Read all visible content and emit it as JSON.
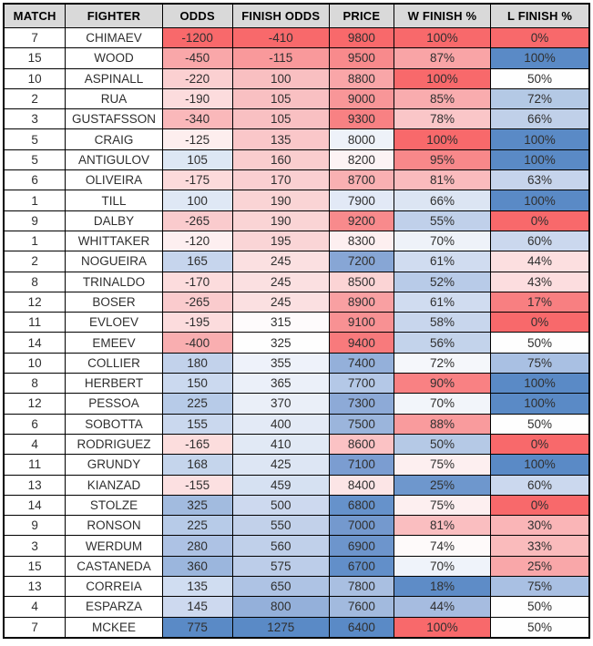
{
  "colors": {
    "header_bg": "#d9d9d9",
    "border": "#000000",
    "scale_red": "#f8696b",
    "scale_white": "#fcfcff",
    "scale_blue": "#5a8ac6",
    "plain_bg": "#ffffff"
  },
  "table": {
    "columns": [
      {
        "key": "match",
        "label": "MATCH"
      },
      {
        "key": "fighter",
        "label": "FIGHTER"
      },
      {
        "key": "odds",
        "label": "ODDS"
      },
      {
        "key": "finish_odds",
        "label": "FINISH ODDS"
      },
      {
        "key": "price",
        "label": "PRICE"
      },
      {
        "key": "w_finish",
        "label": "W FINISH %"
      },
      {
        "key": "l_finish",
        "label": "L FINISH %"
      }
    ],
    "rows": [
      {
        "match": "7",
        "fighter": "CHIMAEV",
        "odds": {
          "t": "-1200",
          "bg": "#f8696b"
        },
        "finish_odds": {
          "t": "-410",
          "bg": "#f8696b"
        },
        "price": {
          "t": "9800",
          "bg": "#f8696b"
        },
        "w_finish": {
          "t": "100%",
          "bg": "#f8696b"
        },
        "l_finish": {
          "t": "0%",
          "bg": "#f8696b"
        }
      },
      {
        "match": "15",
        "fighter": "WOOD",
        "odds": {
          "t": "-450",
          "bg": "#f9a7a9"
        },
        "finish_odds": {
          "t": "-115",
          "bg": "#f9999b"
        },
        "price": {
          "t": "9500",
          "bg": "#f88a8c"
        },
        "w_finish": {
          "t": "87%",
          "bg": "#f9a4a6"
        },
        "l_finish": {
          "t": "100%",
          "bg": "#5a8ac6"
        }
      },
      {
        "match": "10",
        "fighter": "ASPINALL",
        "odds": {
          "t": "-220",
          "bg": "#fbd0d1"
        },
        "finish_odds": {
          "t": "100",
          "bg": "#f9bfc1"
        },
        "price": {
          "t": "8800",
          "bg": "#f9a6a8"
        },
        "w_finish": {
          "t": "100%",
          "bg": "#f8696b"
        },
        "l_finish": {
          "t": "50%",
          "bg": "#fefefe"
        }
      },
      {
        "match": "2",
        "fighter": "RUA",
        "odds": {
          "t": "-190",
          "bg": "#fcdcdd"
        },
        "finish_odds": {
          "t": "105",
          "bg": "#f9c0c2"
        },
        "price": {
          "t": "9000",
          "bg": "#f89698"
        },
        "w_finish": {
          "t": "85%",
          "bg": "#f9acae"
        },
        "l_finish": {
          "t": "72%",
          "bg": "#b4c9e5"
        }
      },
      {
        "match": "3",
        "fighter": "GUSTAFSSON",
        "odds": {
          "t": "-340",
          "bg": "#fab8ba"
        },
        "finish_odds": {
          "t": "105",
          "bg": "#f9c0c2"
        },
        "price": {
          "t": "9300",
          "bg": "#f88183"
        },
        "w_finish": {
          "t": "78%",
          "bg": "#fac6c8"
        },
        "l_finish": {
          "t": "66%",
          "bg": "#c0d0e9"
        }
      },
      {
        "match": "5",
        "fighter": "CRAIG",
        "odds": {
          "t": "-125",
          "bg": "#fdeeee"
        },
        "finish_odds": {
          "t": "135",
          "bg": "#fac7c9"
        },
        "price": {
          "t": "8000",
          "bg": "#eef2f9"
        },
        "w_finish": {
          "t": "100%",
          "bg": "#f8696b"
        },
        "l_finish": {
          "t": "100%",
          "bg": "#5a8ac6"
        }
      },
      {
        "match": "5",
        "fighter": "ANTIGULOV",
        "odds": {
          "t": "105",
          "bg": "#dde7f4"
        },
        "finish_odds": {
          "t": "160",
          "bg": "#facdce"
        },
        "price": {
          "t": "8200",
          "bg": "#fcf3f4"
        },
        "w_finish": {
          "t": "95%",
          "bg": "#f8888a"
        },
        "l_finish": {
          "t": "100%",
          "bg": "#5a8ac6"
        }
      },
      {
        "match": "6",
        "fighter": "OLIVEIRA",
        "odds": {
          "t": "-175",
          "bg": "#fcdadb"
        },
        "finish_odds": {
          "t": "170",
          "bg": "#facfd1"
        },
        "price": {
          "t": "8700",
          "bg": "#f9b0b2"
        },
        "w_finish": {
          "t": "81%",
          "bg": "#fabbbd"
        },
        "l_finish": {
          "t": "63%",
          "bg": "#c6d4ec"
        }
      },
      {
        "match": "1",
        "fighter": "TILL",
        "odds": {
          "t": "100",
          "bg": "#dfe8f5"
        },
        "finish_odds": {
          "t": "190",
          "bg": "#fad4d5"
        },
        "price": {
          "t": "7900",
          "bg": "#e2e9f6"
        },
        "w_finish": {
          "t": "66%",
          "bg": "#dce5f3"
        },
        "l_finish": {
          "t": "100%",
          "bg": "#5a8ac6"
        }
      },
      {
        "match": "9",
        "fighter": "DALBY",
        "odds": {
          "t": "-265",
          "bg": "#facbcd"
        },
        "finish_odds": {
          "t": "190",
          "bg": "#fad4d5"
        },
        "price": {
          "t": "9200",
          "bg": "#f88a8c"
        },
        "w_finish": {
          "t": "55%",
          "bg": "#c0d0ea"
        },
        "l_finish": {
          "t": "0%",
          "bg": "#f8696b"
        }
      },
      {
        "match": "1",
        "fighter": "WHITTAKER",
        "odds": {
          "t": "-120",
          "bg": "#fdeff0"
        },
        "finish_odds": {
          "t": "195",
          "bg": "#fad5d6"
        },
        "price": {
          "t": "8300",
          "bg": "#fdeff0"
        },
        "w_finish": {
          "t": "70%",
          "bg": "#eef2f9"
        },
        "l_finish": {
          "t": "60%",
          "bg": "#cbd8ee"
        }
      },
      {
        "match": "2",
        "fighter": "NOGUEIRA",
        "odds": {
          "t": "165",
          "bg": "#c6d5ed"
        },
        "finish_odds": {
          "t": "245",
          "bg": "#fbe0e1"
        },
        "price": {
          "t": "7200",
          "bg": "#87a6d5"
        },
        "w_finish": {
          "t": "61%",
          "bg": "#d0dcf0"
        },
        "l_finish": {
          "t": "44%",
          "bg": "#fcdfe0"
        }
      },
      {
        "match": "8",
        "fighter": "TRINALDO",
        "odds": {
          "t": "-170",
          "bg": "#fcdcdd"
        },
        "finish_odds": {
          "t": "245",
          "bg": "#fbe0e1"
        },
        "price": {
          "t": "8500",
          "bg": "#fbd4d5"
        },
        "w_finish": {
          "t": "52%",
          "bg": "#b8cbe8"
        },
        "l_finish": {
          "t": "43%",
          "bg": "#fcdddf"
        }
      },
      {
        "match": "12",
        "fighter": "BOSER",
        "odds": {
          "t": "-265",
          "bg": "#facbcd"
        },
        "finish_odds": {
          "t": "245",
          "bg": "#fbe0e1"
        },
        "price": {
          "t": "8900",
          "bg": "#f9a0a2"
        },
        "w_finish": {
          "t": "61%",
          "bg": "#d0dcf0"
        },
        "l_finish": {
          "t": "17%",
          "bg": "#f87f81"
        }
      },
      {
        "match": "11",
        "fighter": "EVLOEV",
        "odds": {
          "t": "-195",
          "bg": "#fcdcdd"
        },
        "finish_odds": {
          "t": "315",
          "bg": "#fefbfc"
        },
        "price": {
          "t": "9100",
          "bg": "#f89193"
        },
        "w_finish": {
          "t": "58%",
          "bg": "#c8d6ed"
        },
        "l_finish": {
          "t": "0%",
          "bg": "#f8696b"
        }
      },
      {
        "match": "14",
        "fighter": "EMEEV",
        "odds": {
          "t": "-400",
          "bg": "#f9aeb0"
        },
        "finish_odds": {
          "t": "325",
          "bg": "#fefefe"
        },
        "price": {
          "t": "9400",
          "bg": "#f87a7c"
        },
        "w_finish": {
          "t": "56%",
          "bg": "#c3d3eb"
        },
        "l_finish": {
          "t": "50%",
          "bg": "#fefefe"
        }
      },
      {
        "match": "10",
        "fighter": "COLLIER",
        "odds": {
          "t": "180",
          "bg": "#c2d2eb"
        },
        "finish_odds": {
          "t": "355",
          "bg": "#eef2fa"
        },
        "price": {
          "t": "7400",
          "bg": "#94b0da"
        },
        "w_finish": {
          "t": "72%",
          "bg": "#f5f7fb"
        },
        "l_finish": {
          "t": "75%",
          "bg": "#a9c0e3"
        }
      },
      {
        "match": "8",
        "fighter": "HERBERT",
        "odds": {
          "t": "150",
          "bg": "#cbd9ef"
        },
        "finish_odds": {
          "t": "365",
          "bg": "#ebf0f9"
        },
        "price": {
          "t": "7700",
          "bg": "#b4c8e7"
        },
        "w_finish": {
          "t": "90%",
          "bg": "#f98183"
        },
        "l_finish": {
          "t": "100%",
          "bg": "#5a8ac6"
        }
      },
      {
        "match": "12",
        "fighter": "PESSOA",
        "odds": {
          "t": "225",
          "bg": "#b7cbe8"
        },
        "finish_odds": {
          "t": "370",
          "bg": "#eaeff8"
        },
        "price": {
          "t": "7300",
          "bg": "#8daad7"
        },
        "w_finish": {
          "t": "70%",
          "bg": "#f2f5fa"
        },
        "l_finish": {
          "t": "100%",
          "bg": "#5a8ac6"
        }
      },
      {
        "match": "6",
        "fighter": "SOBOTTA",
        "odds": {
          "t": "155",
          "bg": "#cad8ee"
        },
        "finish_odds": {
          "t": "400",
          "bg": "#e3eaf6"
        },
        "price": {
          "t": "7500",
          "bg": "#9bb5dc"
        },
        "w_finish": {
          "t": "88%",
          "bg": "#f99b9d"
        },
        "l_finish": {
          "t": "50%",
          "bg": "#fefefe"
        }
      },
      {
        "match": "4",
        "fighter": "RODRIGUEZ",
        "odds": {
          "t": "-165",
          "bg": "#fcdddd"
        },
        "finish_odds": {
          "t": "410",
          "bg": "#e1e9f5"
        },
        "price": {
          "t": "8600",
          "bg": "#fbc2c4"
        },
        "w_finish": {
          "t": "50%",
          "bg": "#b5c9e6"
        },
        "l_finish": {
          "t": "0%",
          "bg": "#f8696b"
        }
      },
      {
        "match": "11",
        "fighter": "GRUNDY",
        "odds": {
          "t": "168",
          "bg": "#c5d5ec"
        },
        "finish_odds": {
          "t": "425",
          "bg": "#dde6f4"
        },
        "price": {
          "t": "7100",
          "bg": "#7b9dd1"
        },
        "w_finish": {
          "t": "75%",
          "bg": "#fdeff0"
        },
        "l_finish": {
          "t": "100%",
          "bg": "#5a8ac6"
        }
      },
      {
        "match": "13",
        "fighter": "KIANZAD",
        "odds": {
          "t": "-155",
          "bg": "#fce0e1"
        },
        "finish_odds": {
          "t": "459",
          "bg": "#d6e1f2"
        },
        "price": {
          "t": "8400",
          "bg": "#fce5e6"
        },
        "w_finish": {
          "t": "25%",
          "bg": "#6e97cd"
        },
        "l_finish": {
          "t": "60%",
          "bg": "#cbd8ee"
        }
      },
      {
        "match": "14",
        "fighter": "STOLZE",
        "odds": {
          "t": "325",
          "bg": "#a2bbdf"
        },
        "finish_odds": {
          "t": "500",
          "bg": "#cdd9ef"
        },
        "price": {
          "t": "6800",
          "bg": "#6692cb"
        },
        "w_finish": {
          "t": "75%",
          "bg": "#fdeff0"
        },
        "l_finish": {
          "t": "0%",
          "bg": "#f8696b"
        }
      },
      {
        "match": "9",
        "fighter": "RONSON",
        "odds": {
          "t": "225",
          "bg": "#b7cbe8"
        },
        "finish_odds": {
          "t": "550",
          "bg": "#c2d1ea"
        },
        "price": {
          "t": "7000",
          "bg": "#7499ce"
        },
        "w_finish": {
          "t": "81%",
          "bg": "#fabec0"
        },
        "l_finish": {
          "t": "30%",
          "bg": "#fab5b7"
        }
      },
      {
        "match": "3",
        "fighter": "WERDUM",
        "odds": {
          "t": "280",
          "bg": "#adc2e4"
        },
        "finish_odds": {
          "t": "560",
          "bg": "#c0d0ea"
        },
        "price": {
          "t": "6900",
          "bg": "#6d95cc"
        },
        "w_finish": {
          "t": "74%",
          "bg": "#fefafa"
        },
        "l_finish": {
          "t": "33%",
          "bg": "#fabbbc"
        }
      },
      {
        "match": "15",
        "fighter": "CASTANEDA",
        "odds": {
          "t": "360",
          "bg": "#9bb6dd"
        },
        "finish_odds": {
          "t": "575",
          "bg": "#bccde9"
        },
        "price": {
          "t": "6700",
          "bg": "#628fc9"
        },
        "w_finish": {
          "t": "70%",
          "bg": "#eff3fa"
        },
        "l_finish": {
          "t": "25%",
          "bg": "#f9a7a9"
        }
      },
      {
        "match": "13",
        "fighter": "CORREIA",
        "odds": {
          "t": "135",
          "bg": "#d0ddf1"
        },
        "finish_odds": {
          "t": "650",
          "bg": "#aec3e4"
        },
        "price": {
          "t": "7800",
          "bg": "#a9bfe1"
        },
        "w_finish": {
          "t": "18%",
          "bg": "#5e8cc7"
        },
        "l_finish": {
          "t": "75%",
          "bg": "#a9c0e3"
        }
      },
      {
        "match": "4",
        "fighter": "ESPARZA",
        "odds": {
          "t": "145",
          "bg": "#cdd9ef"
        },
        "finish_odds": {
          "t": "800",
          "bg": "#94b0da"
        },
        "price": {
          "t": "7600",
          "bg": "#a2bade"
        },
        "w_finish": {
          "t": "44%",
          "bg": "#a6bce0"
        },
        "l_finish": {
          "t": "50%",
          "bg": "#fefefe"
        }
      },
      {
        "match": "7",
        "fighter": "MCKEE",
        "odds": {
          "t": "775",
          "bg": "#5a8ac6"
        },
        "finish_odds": {
          "t": "1275",
          "bg": "#5a8ac6"
        },
        "price": {
          "t": "6400",
          "bg": "#5a8ac6"
        },
        "w_finish": {
          "t": "100%",
          "bg": "#f8696b"
        },
        "l_finish": {
          "t": "50%",
          "bg": "#fefefe"
        }
      }
    ]
  }
}
